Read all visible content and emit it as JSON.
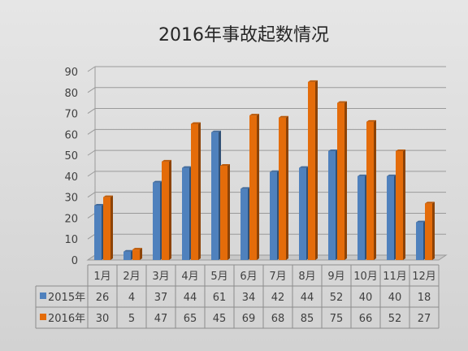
{
  "chart_data": {
    "type": "bar",
    "title": "2016年事故起数情况",
    "categories": [
      "1月",
      "2月",
      "3月",
      "4月",
      "5月",
      "6月",
      "7月",
      "8月",
      "9月",
      "10月",
      "11月",
      "12月"
    ],
    "series": [
      {
        "name": "2015年",
        "color": "#4f81bd",
        "values": [
          26,
          4,
          37,
          44,
          61,
          34,
          42,
          44,
          52,
          40,
          40,
          18
        ]
      },
      {
        "name": "2016年",
        "color": "#e46c0a",
        "values": [
          30,
          5,
          47,
          65,
          45,
          69,
          68,
          85,
          75,
          66,
          52,
          27
        ]
      }
    ],
    "ylim": [
      0,
      90
    ],
    "yticks": [
      0,
      10,
      20,
      30,
      40,
      50,
      60,
      70,
      80,
      90
    ],
    "grid": true,
    "legend": "data-table",
    "style": "3d-column"
  }
}
